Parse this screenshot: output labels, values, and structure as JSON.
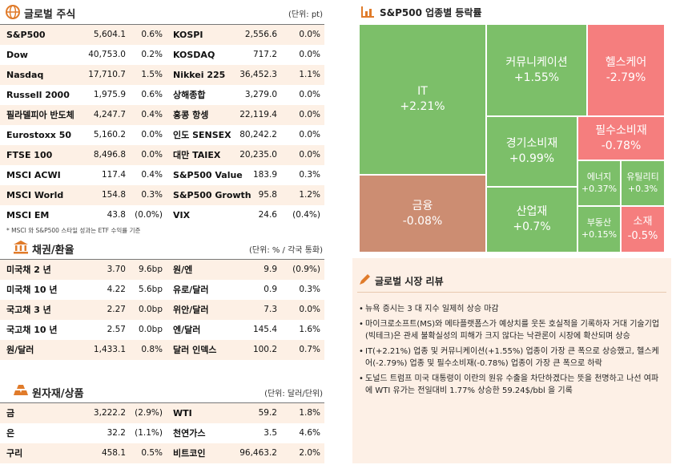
{
  "equity": {
    "title": "글로벌 주식",
    "unit": "(단위: pt)",
    "rows": [
      [
        "S&P500",
        "5,604.1",
        "0.6%",
        "KOSPI",
        "2,556.6",
        "0.0%"
      ],
      [
        "Dow",
        "40,753.0",
        "0.2%",
        "KOSDAQ",
        "717.2",
        "0.0%"
      ],
      [
        "Nasdaq",
        "17,710.7",
        "1.5%",
        "Nikkei 225",
        "36,452.3",
        "1.1%"
      ],
      [
        "Russell 2000",
        "1,975.9",
        "0.6%",
        "상해종합",
        "3,279.0",
        "0.0%"
      ],
      [
        "필라델피아 반도체",
        "4,247.7",
        "0.4%",
        "홍콩 항셍",
        "22,119.4",
        "0.0%"
      ],
      [
        "Eurostoxx 50",
        "5,160.2",
        "0.0%",
        "인도 SENSEX",
        "80,242.2",
        "0.0%"
      ],
      [
        "FTSE 100",
        "8,496.8",
        "0.0%",
        "대만 TAIEX",
        "20,235.0",
        "0.0%"
      ],
      [
        "MSCI ACWI",
        "117.4",
        "0.4%",
        "S&P500 Value",
        "183.9",
        "0.3%"
      ],
      [
        "MSCI World",
        "154.8",
        "0.3%",
        "S&P500 Growth",
        "95.8",
        "1.2%"
      ],
      [
        "MSCI EM",
        "43.8",
        "(0.0%)",
        "VIX",
        "24.6",
        "(0.4%)"
      ]
    ],
    "note": "* MSCI 와 S&P500 스타일 성과는 ETF 수익률 기준"
  },
  "fx": {
    "title": "채권/환율",
    "unit": "(단위: % / 각국 통화)",
    "rows": [
      [
        "미국채 2 년",
        "3.70",
        "9.6bp",
        "원/엔",
        "9.9",
        "(0.9%)"
      ],
      [
        "미국채 10 년",
        "4.22",
        "5.6bp",
        "유로/달러",
        "0.9",
        "0.3%"
      ],
      [
        "국고채 3 년",
        "2.27",
        "0.0bp",
        "위안/달러",
        "7.3",
        "0.0%"
      ],
      [
        "국고채 10 년",
        "2.57",
        "0.0bp",
        "엔/달러",
        "145.4",
        "1.6%"
      ],
      [
        "원/달러",
        "1,433.1",
        "0.8%",
        "달러 인덱스",
        "100.2",
        "0.7%"
      ]
    ]
  },
  "commodity": {
    "title": "원자재/상품",
    "unit": "(단위: 달러/단위)",
    "rows": [
      [
        "금",
        "3,222.2",
        "(2.9%)",
        "WTI",
        "59.2",
        "1.8%"
      ],
      [
        "은",
        "32.2",
        "(1.1%)",
        "천연가스",
        "3.5",
        "4.6%"
      ],
      [
        "구리",
        "458.1",
        "0.5%",
        "비트코인",
        "96,463.2",
        "2.0%"
      ]
    ]
  },
  "sector_map": {
    "title": "S&P500 업종별 등락률",
    "tiles": [
      {
        "name": "IT",
        "change": "+2.21%"
      },
      {
        "name": "커뮤니케이션",
        "change": "+1.55%"
      },
      {
        "name": "헬스케어",
        "change": "-2.79%"
      },
      {
        "name": "경기소비재",
        "change": "+0.99%"
      },
      {
        "name": "필수소비재",
        "change": "-0.78%"
      },
      {
        "name": "에너지",
        "change": "+0.37%"
      },
      {
        "name": "유틸리티",
        "change": "+0.3%"
      },
      {
        "name": "부동산",
        "change": "+0.15%"
      },
      {
        "name": "소재",
        "change": "-0.5%"
      },
      {
        "name": "산업재",
        "change": "+0.7%"
      },
      {
        "name": "금융",
        "change": "-0.08%"
      }
    ]
  },
  "review": {
    "title": "글로벌 시장 리뷰",
    "bullets": [
      "뉴욕 증시는 3 대 지수 일제히 상승 마감",
      "마이크로소프트(MS)와 메타플랫폼스가 예상치를 웃돈 호실적을 기록하자 거대 기술기업(빅테크)은 관세 불확실성의 피해가 크지 않다는 낙관론이 시장에 확산되며 상승",
      "IT(+2.21%) 업종 및 커뮤니케이션(+1.55%) 업종이 가장 큰 폭으로 상승했고, 헬스케어(-2.79%) 업종 및 필수소비재(-0.78%) 업종이 가장 큰 폭으로 하락",
      "도널드 트럼프 미국 대통령이 이란의 원유 수출을 차단하겠다는 뜻을 천명하고 나선 여파에 WTI 유가는 전일대비 1.77% 상승한 59.24$/bbl 을 기록"
    ]
  }
}
